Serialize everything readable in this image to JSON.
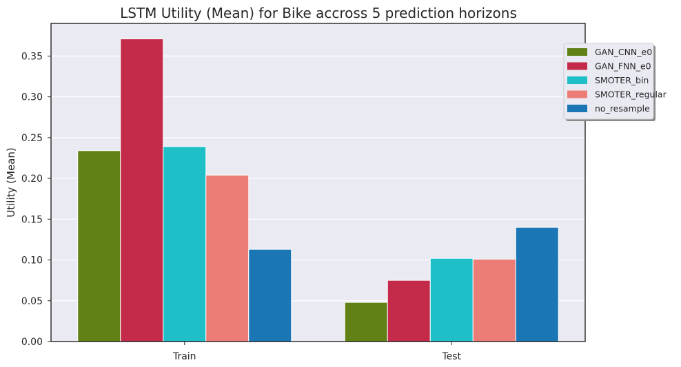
{
  "chart_data": {
    "type": "bar",
    "title": "LSTM Utility (Mean) for Bike accross 5 prediction horizons",
    "xlabel": "",
    "ylabel": "Utility (Mean)",
    "categories": [
      "Train",
      "Test"
    ],
    "ylim": [
      0,
      0.39
    ],
    "yticks": [
      "0.00",
      "0.05",
      "0.10",
      "0.15",
      "0.20",
      "0.25",
      "0.30",
      "0.35"
    ],
    "grid": true,
    "legend_position": "upper-right",
    "series": [
      {
        "name": "GAN_CNN_e0",
        "color": "#618015",
        "values": [
          0.234,
          0.048
        ]
      },
      {
        "name": "GAN_FNN_e0",
        "color": "#c42b4a",
        "values": [
          0.371,
          0.075
        ]
      },
      {
        "name": "SMOTER_bin",
        "color": "#1fbfc8",
        "values": [
          0.239,
          0.102
        ]
      },
      {
        "name": "SMOTER_regular",
        "color": "#ec7d76",
        "values": [
          0.204,
          0.101
        ]
      },
      {
        "name": "no_resample",
        "color": "#1a76b5",
        "values": [
          0.113,
          0.14
        ]
      }
    ],
    "background_color": "#eaeaf2"
  }
}
